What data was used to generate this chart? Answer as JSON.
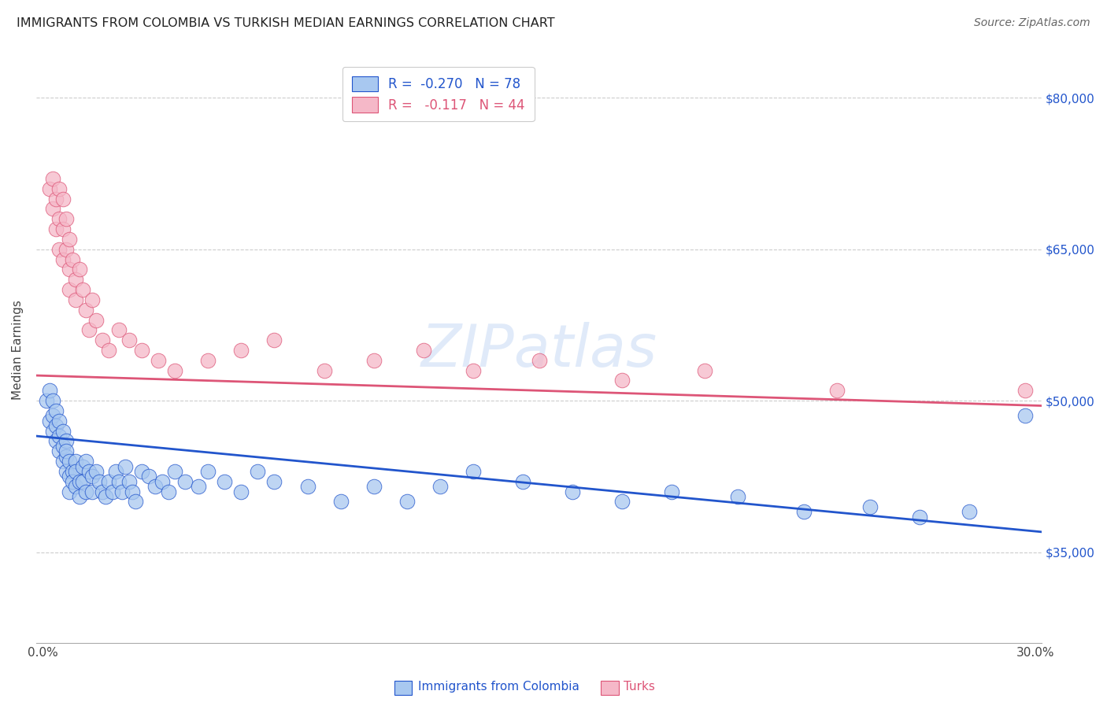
{
  "title": "IMMIGRANTS FROM COLOMBIA VS TURKISH MEDIAN EARNINGS CORRELATION CHART",
  "source": "Source: ZipAtlas.com",
  "ylabel": "Median Earnings",
  "y_tick_labels": [
    "$35,000",
    "$50,000",
    "$65,000",
    "$80,000"
  ],
  "y_tick_values": [
    35000,
    50000,
    65000,
    80000
  ],
  "ylim": [
    26000,
    84000
  ],
  "xlim": [
    -0.002,
    0.302
  ],
  "legend1_label": "R =  -0.270   N = 78",
  "legend2_label": "R =   -0.117   N = 44",
  "color_colombia": "#a8c8f0",
  "color_turks": "#f5b8c8",
  "line_color_colombia": "#2255cc",
  "line_color_turks": "#dd5577",
  "watermark": "ZIPatlas",
  "colombia_x": [
    0.001,
    0.002,
    0.002,
    0.003,
    0.003,
    0.003,
    0.004,
    0.004,
    0.004,
    0.005,
    0.005,
    0.005,
    0.006,
    0.006,
    0.006,
    0.007,
    0.007,
    0.007,
    0.007,
    0.008,
    0.008,
    0.008,
    0.009,
    0.009,
    0.01,
    0.01,
    0.01,
    0.011,
    0.011,
    0.012,
    0.012,
    0.013,
    0.013,
    0.014,
    0.015,
    0.015,
    0.016,
    0.017,
    0.018,
    0.019,
    0.02,
    0.021,
    0.022,
    0.023,
    0.024,
    0.025,
    0.026,
    0.027,
    0.028,
    0.03,
    0.032,
    0.034,
    0.036,
    0.038,
    0.04,
    0.043,
    0.047,
    0.05,
    0.055,
    0.06,
    0.065,
    0.07,
    0.08,
    0.09,
    0.1,
    0.11,
    0.12,
    0.13,
    0.145,
    0.16,
    0.175,
    0.19,
    0.21,
    0.23,
    0.25,
    0.265,
    0.28,
    0.297
  ],
  "colombia_y": [
    50000,
    51000,
    48000,
    50000,
    48500,
    47000,
    49000,
    47500,
    46000,
    48000,
    46500,
    45000,
    47000,
    45500,
    44000,
    46000,
    44500,
    43000,
    45000,
    44000,
    42500,
    41000,
    43000,
    42000,
    44000,
    43000,
    41500,
    42000,
    40500,
    43500,
    42000,
    41000,
    44000,
    43000,
    42500,
    41000,
    43000,
    42000,
    41000,
    40500,
    42000,
    41000,
    43000,
    42000,
    41000,
    43500,
    42000,
    41000,
    40000,
    43000,
    42500,
    41500,
    42000,
    41000,
    43000,
    42000,
    41500,
    43000,
    42000,
    41000,
    43000,
    42000,
    41500,
    40000,
    41500,
    40000,
    41500,
    43000,
    42000,
    41000,
    40000,
    41000,
    40500,
    39000,
    39500,
    38500,
    39000,
    48500
  ],
  "turks_x": [
    0.002,
    0.003,
    0.003,
    0.004,
    0.004,
    0.005,
    0.005,
    0.005,
    0.006,
    0.006,
    0.006,
    0.007,
    0.007,
    0.008,
    0.008,
    0.008,
    0.009,
    0.01,
    0.01,
    0.011,
    0.012,
    0.013,
    0.014,
    0.015,
    0.016,
    0.018,
    0.02,
    0.023,
    0.026,
    0.03,
    0.035,
    0.04,
    0.05,
    0.06,
    0.07,
    0.085,
    0.1,
    0.115,
    0.13,
    0.15,
    0.175,
    0.2,
    0.24,
    0.297
  ],
  "turks_y": [
    71000,
    72000,
    69000,
    70000,
    67000,
    71000,
    68000,
    65000,
    70000,
    67000,
    64000,
    68000,
    65000,
    66000,
    63000,
    61000,
    64000,
    62000,
    60000,
    63000,
    61000,
    59000,
    57000,
    60000,
    58000,
    56000,
    55000,
    57000,
    56000,
    55000,
    54000,
    53000,
    54000,
    55000,
    56000,
    53000,
    54000,
    55000,
    53000,
    54000,
    52000,
    53000,
    51000,
    51000
  ]
}
